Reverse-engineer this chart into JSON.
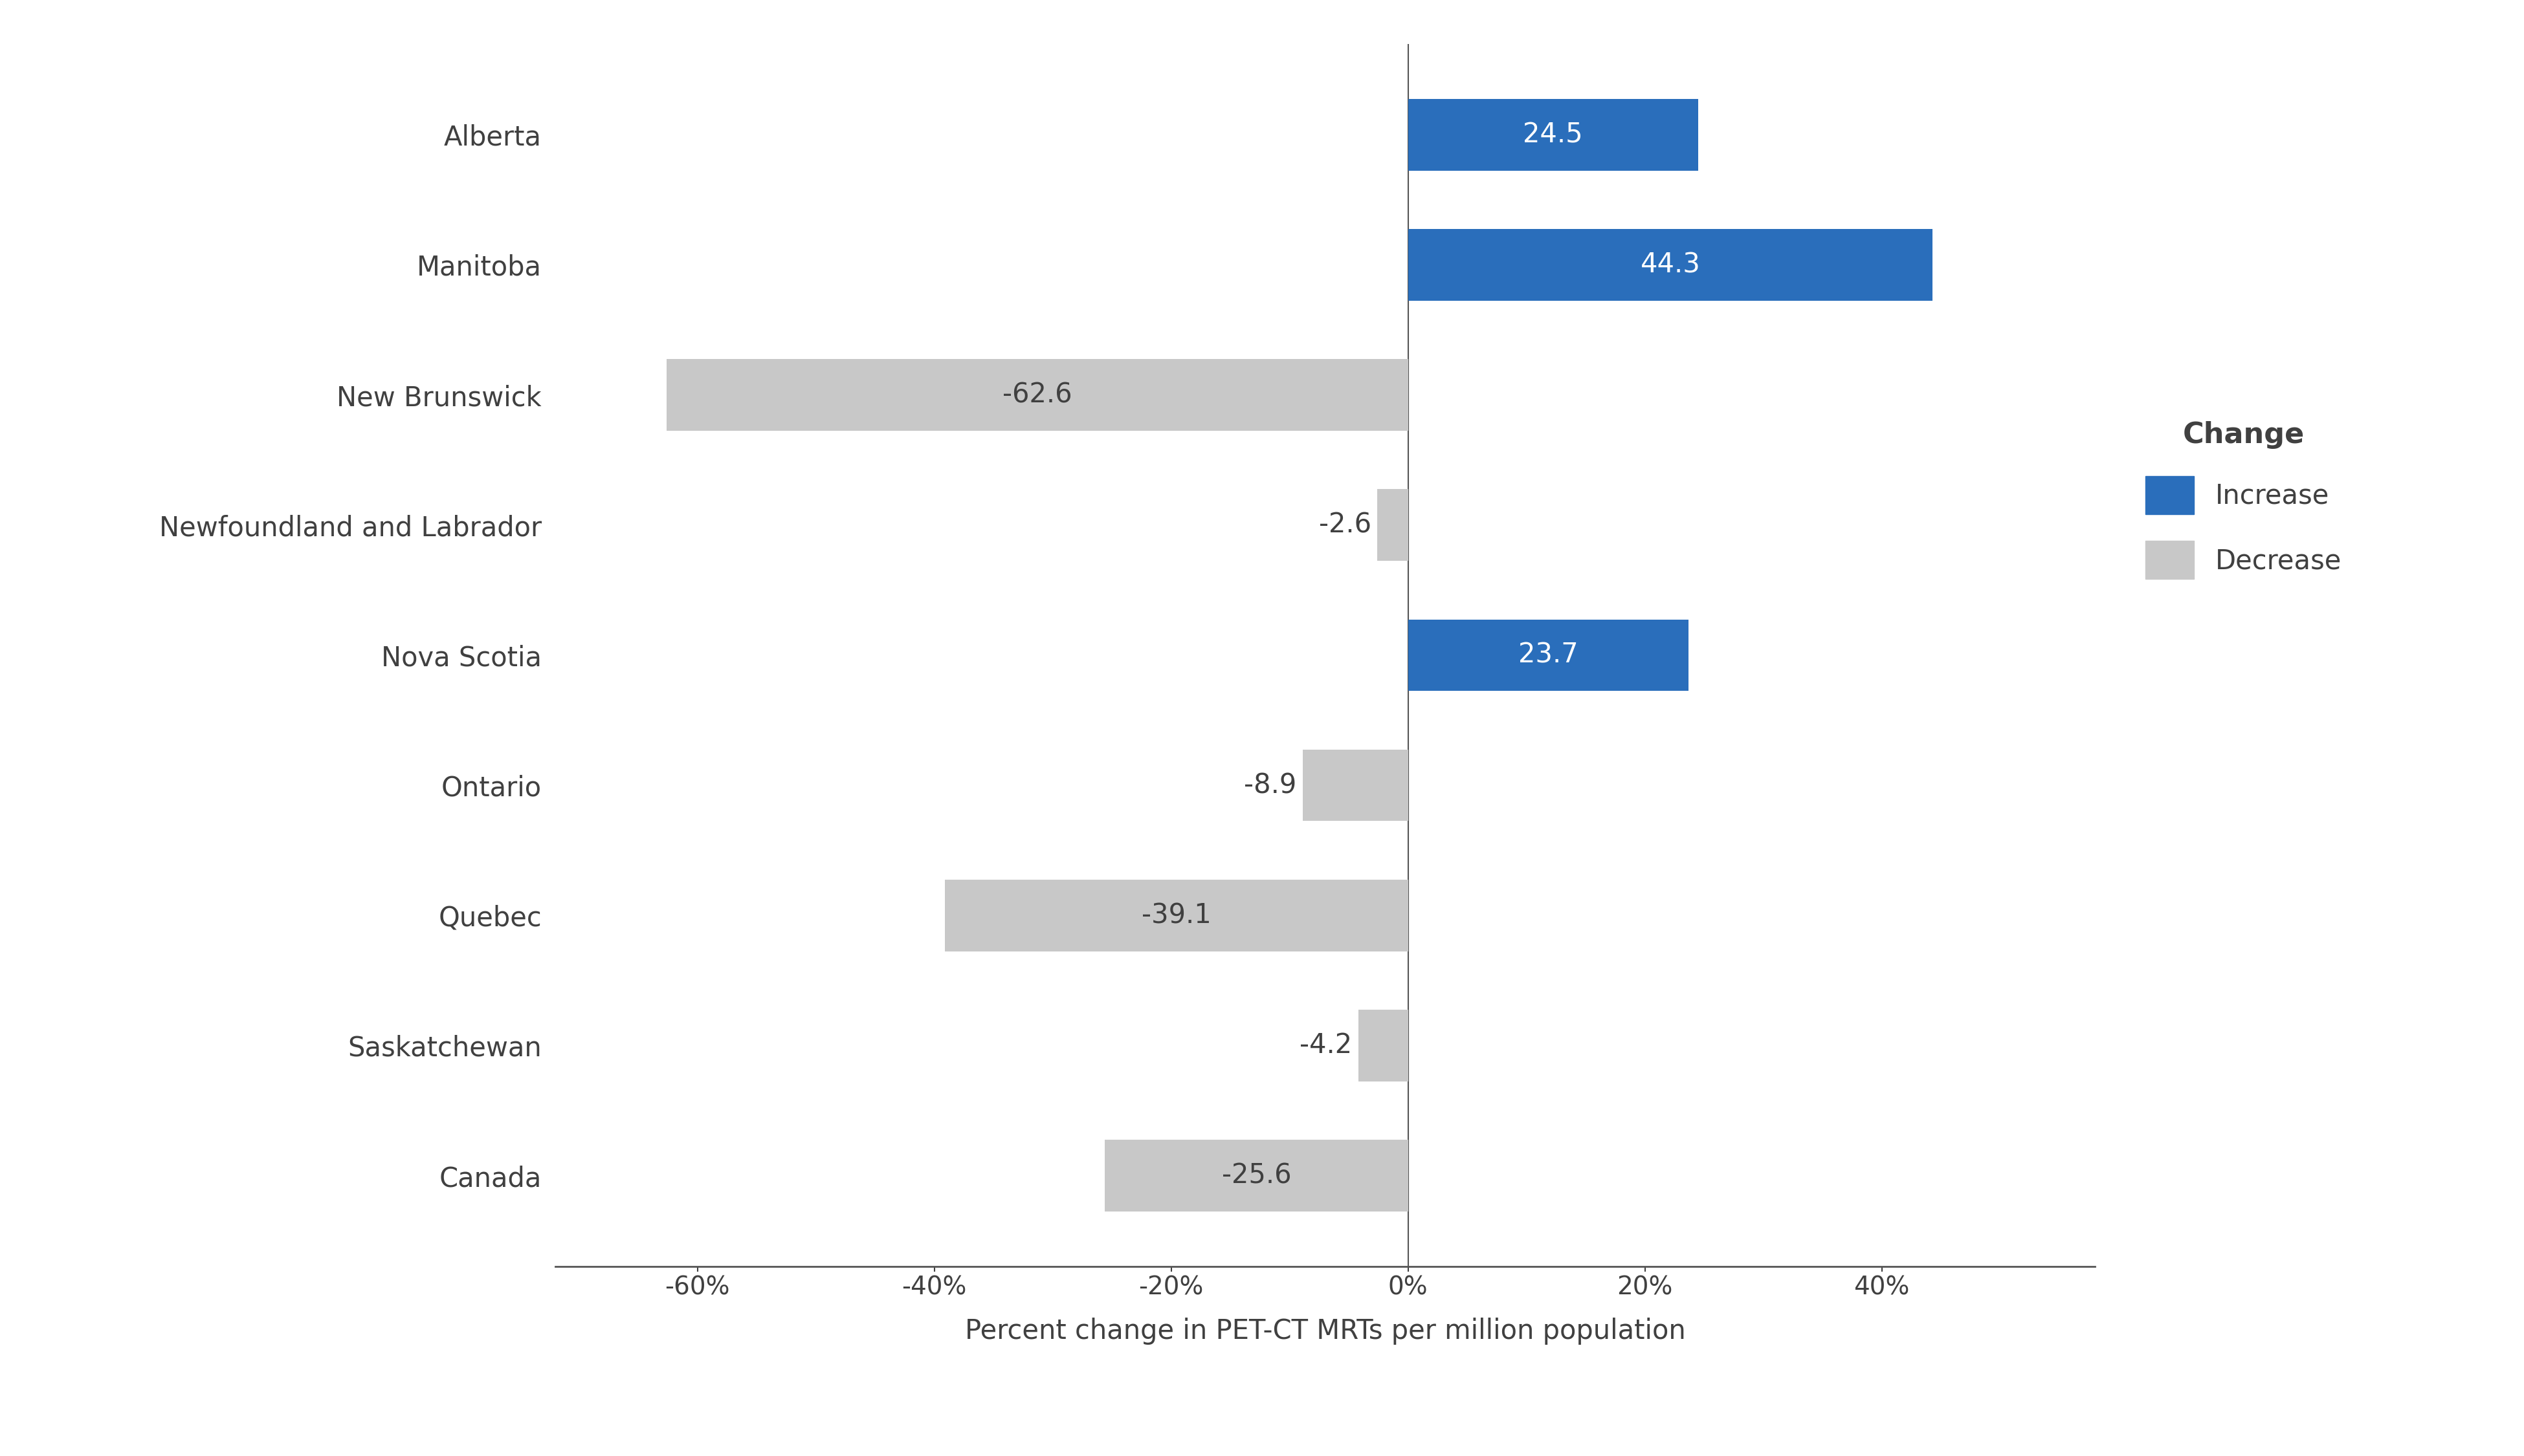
{
  "categories": [
    "Alberta",
    "Manitoba",
    "New Brunswick",
    "Newfoundland and Labrador",
    "Nova Scotia",
    "Ontario",
    "Quebec",
    "Saskatchewan",
    "Canada"
  ],
  "values": [
    24.5,
    44.3,
    -62.6,
    -2.6,
    23.7,
    -8.9,
    -39.1,
    -4.2,
    -25.6
  ],
  "colors": [
    "#2A6EBB",
    "#2A6EBB",
    "#C8C8C8",
    "#C8C8C8",
    "#2A6EBB",
    "#C8C8C8",
    "#C8C8C8",
    "#C8C8C8",
    "#C8C8C8"
  ],
  "increase_color": "#2A6EBB",
  "decrease_color": "#C8C8C8",
  "xlabel": "Percent change in PET-CT MRTs per million population",
  "xlim": [
    -72,
    58
  ],
  "xticks": [
    -60,
    -40,
    -20,
    0,
    20,
    40
  ],
  "xtick_labels": [
    "-60%",
    "-40%",
    "-20%",
    "0%",
    "20%",
    "40%"
  ],
  "legend_title": "Change",
  "legend_labels": [
    "Increase",
    "Decrease"
  ],
  "background_color": "#FFFFFF",
  "bar_height": 0.55,
  "label_fontsize": 30,
  "tick_fontsize": 28,
  "xlabel_fontsize": 30,
  "ylabel_fontsize": 30,
  "legend_title_fontsize": 32,
  "legend_fontsize": 30,
  "text_color": "#404040",
  "spine_color": "#555555"
}
